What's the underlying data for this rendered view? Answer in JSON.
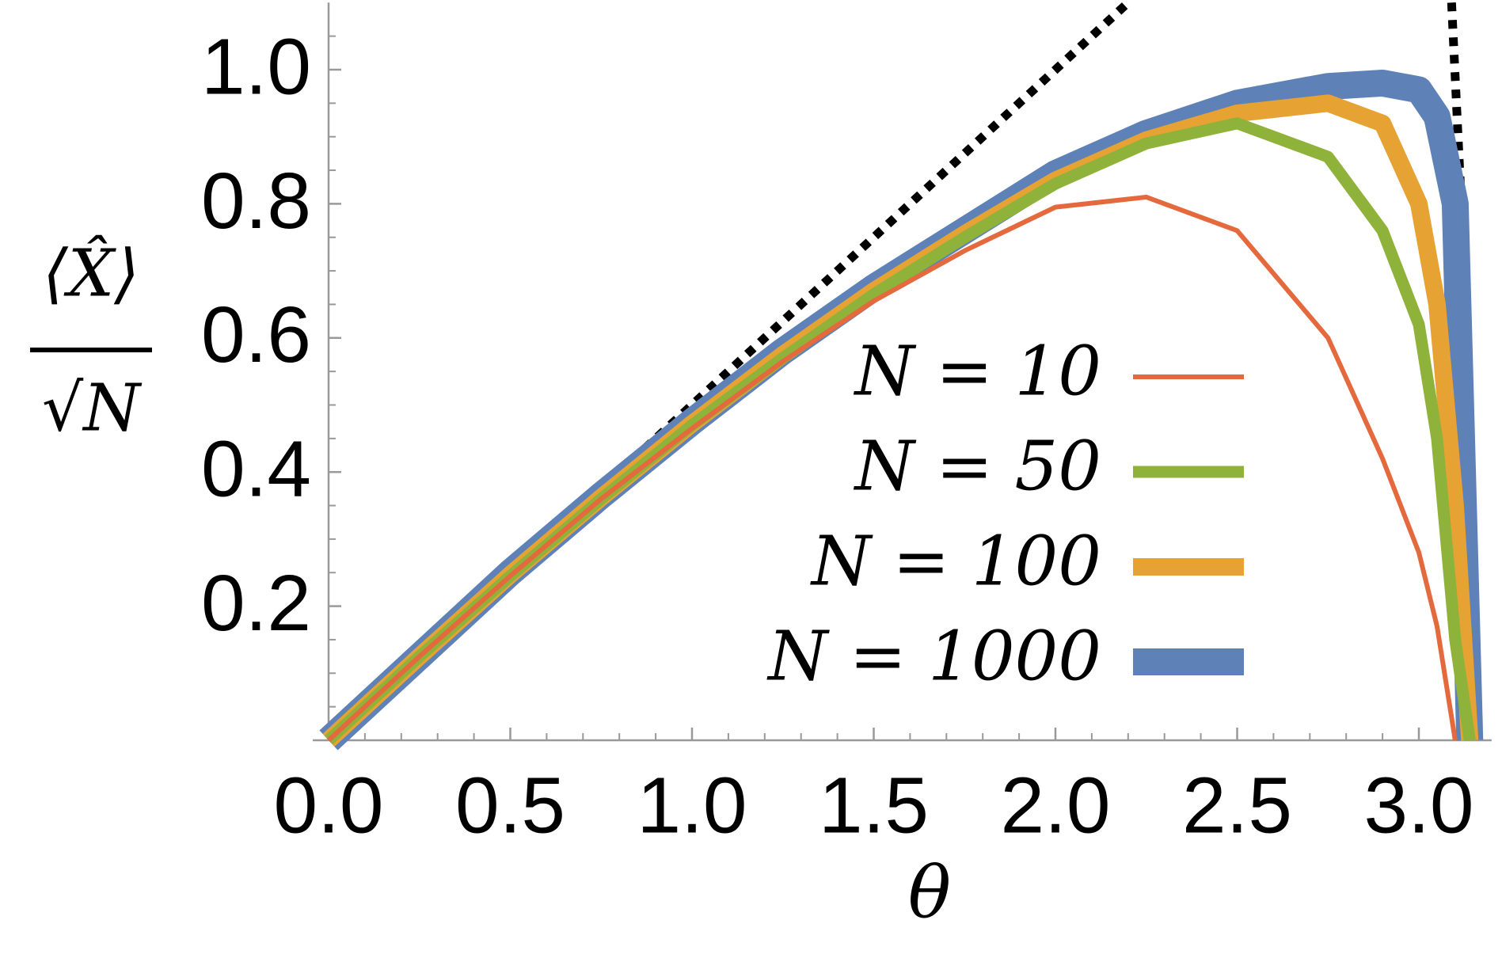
{
  "chart_data": {
    "type": "line",
    "xlabel": "θ",
    "ylabel": {
      "numerator": "⟨X̂⟩",
      "denominator": "√N"
    },
    "x": [
      0,
      0.25,
      0.5,
      0.75,
      1,
      1.25,
      1.5,
      1.75,
      2,
      2.25,
      2.5,
      2.75,
      2.9,
      3.0,
      3.05,
      3.1,
      3.14
    ],
    "series": [
      {
        "name": "N = 10",
        "color": "#e4693c",
        "width": 6,
        "values": [
          0,
          0.125,
          0.245,
          0.36,
          0.465,
          0.565,
          0.655,
          0.73,
          0.795,
          0.81,
          0.76,
          0.6,
          0.42,
          0.28,
          0.17,
          0.0,
          null
        ]
      },
      {
        "name": "N = 50",
        "color": "#8fb23a",
        "width": 15,
        "values": [
          0,
          0.125,
          0.245,
          0.36,
          0.47,
          0.57,
          0.665,
          0.75,
          0.83,
          0.89,
          0.92,
          0.87,
          0.76,
          0.62,
          0.45,
          0.15,
          0
        ]
      },
      {
        "name": "N = 100",
        "color": "#e6a233",
        "width": 22,
        "values": [
          0,
          0.125,
          0.247,
          0.362,
          0.472,
          0.575,
          0.67,
          0.755,
          0.835,
          0.895,
          0.935,
          0.95,
          0.92,
          0.8,
          0.65,
          0.35,
          0
        ]
      },
      {
        "name": "N = 1000",
        "color": "#5e82b8",
        "width": 34,
        "values": [
          0,
          0.125,
          0.25,
          0.365,
          0.475,
          0.58,
          0.675,
          0.76,
          0.845,
          0.905,
          0.95,
          0.975,
          0.98,
          0.97,
          0.93,
          0.8,
          0
        ]
      }
    ],
    "asymptotes": [
      {
        "x": [
          0.87,
          2.2
        ],
        "values": [
          0.435,
          1.1
        ]
      },
      {
        "x": [
          3.09,
          3.115
        ],
        "values": [
          1.1,
          0.82
        ]
      }
    ],
    "legend": "right",
    "xlim": [
      0,
      3.2
    ],
    "ylim": [
      0,
      1.1
    ],
    "xticks": [
      {
        "value": 0,
        "label": "0.0"
      },
      0.5,
      {
        "value": 1,
        "label": "1.0"
      },
      1.5,
      {
        "value": 2,
        "label": "2.0"
      },
      2.5,
      {
        "value": 3,
        "label": "3.0"
      }
    ],
    "yticks": [
      0.2,
      0.4,
      0.6,
      0.8,
      {
        "value": 1,
        "label": "1.0"
      }
    ],
    "xminorticks": [
      0.1,
      0.2,
      0.3,
      0.4,
      0.6,
      0.7,
      0.8,
      0.9,
      1.1,
      1.2,
      1.3,
      1.4,
      1.6,
      1.7,
      1.8,
      1.9,
      2.1,
      2.2,
      2.3,
      2.4,
      2.6,
      2.7,
      2.8,
      2.9,
      3.1
    ],
    "yminorticks": [
      0.05,
      0.1,
      0.15,
      0.25,
      0.3,
      0.35,
      0.45,
      0.5,
      0.55,
      0.65,
      0.7,
      0.75,
      0.85,
      0.9,
      0.95,
      1.05
    ]
  }
}
